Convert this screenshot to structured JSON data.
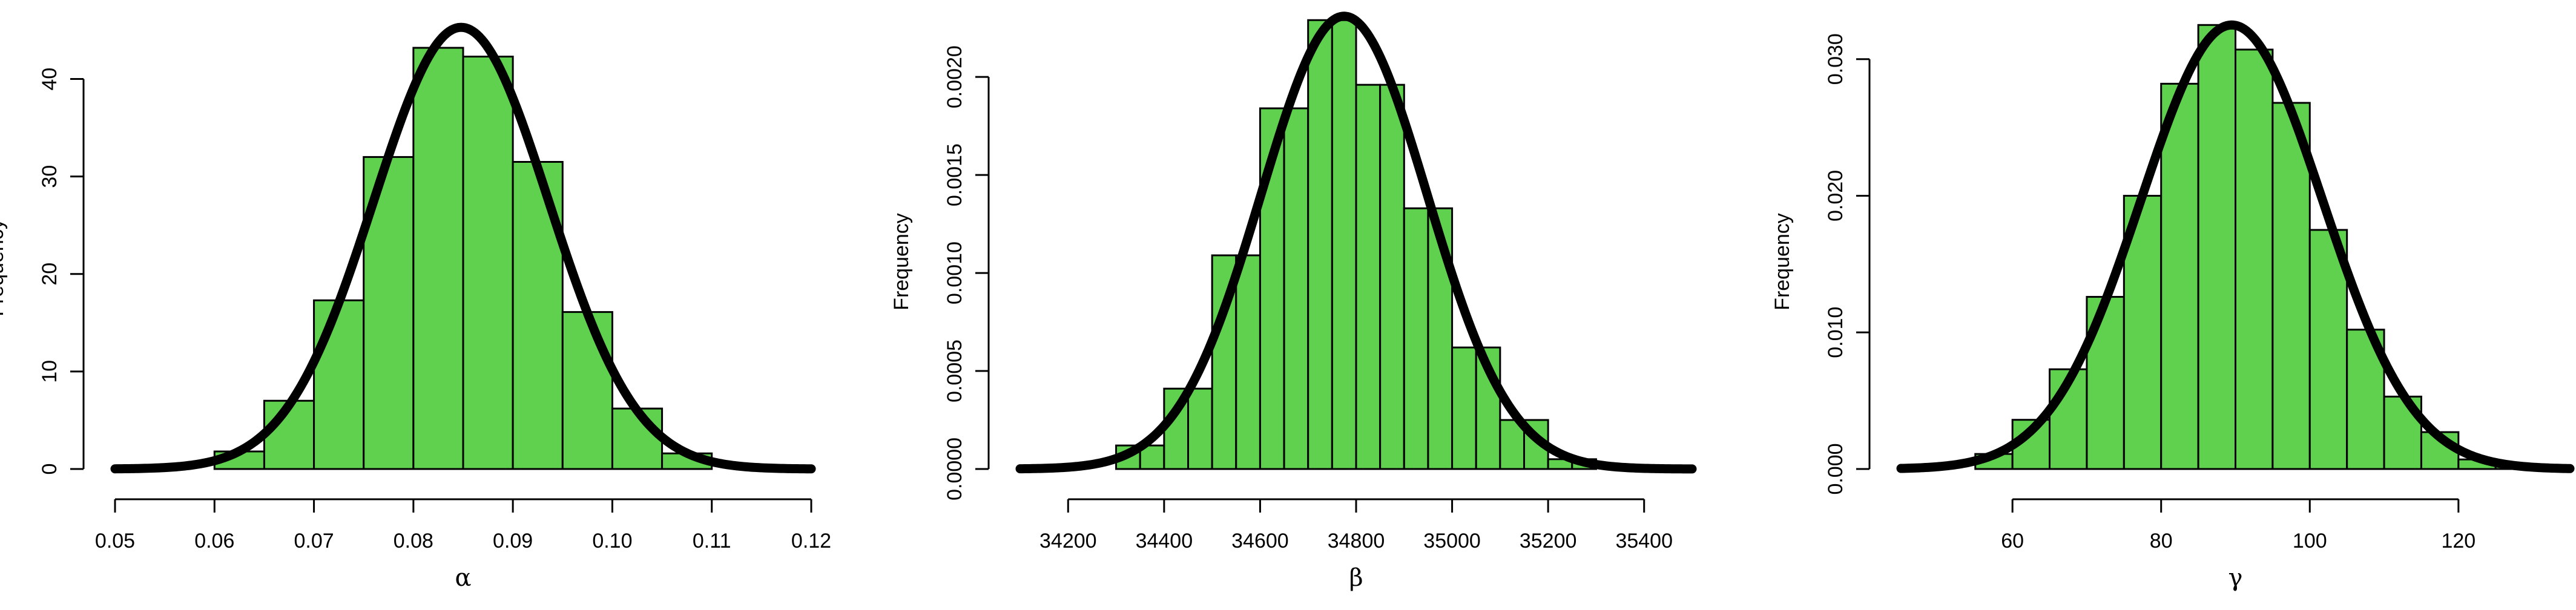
{
  "colors": {
    "bar_fill": "#5fd14f",
    "bar_stroke": "#000000",
    "curve": "#000000"
  },
  "chart_data": [
    {
      "type": "bar",
      "title": "",
      "xlabel": "α",
      "ylabel": "Frequency",
      "xlim": [
        0.05,
        0.12
      ],
      "ylim": [
        0,
        45
      ],
      "x_ticks": [
        0.05,
        0.06,
        0.07,
        0.08,
        0.09,
        0.1,
        0.11,
        0.12
      ],
      "x_tick_labels": [
        "0.05",
        "0.06",
        "0.07",
        "0.08",
        "0.09",
        "0.10",
        "0.11",
        "0.12"
      ],
      "y_ticks": [
        0,
        10,
        20,
        30,
        40
      ],
      "y_tick_labels": [
        "0",
        "10",
        "20",
        "30",
        "40"
      ],
      "bin_edges": [
        0.06,
        0.065,
        0.07,
        0.075,
        0.08,
        0.085,
        0.09,
        0.095,
        0.1,
        0.105,
        0.11
      ],
      "values": [
        1.8,
        7.0,
        17.3,
        32.0,
        43.2,
        42.3,
        31.5,
        16.1,
        6.2,
        1.6
      ],
      "curve": {
        "type": "normal",
        "mean": 0.0848,
        "sd": 0.0088,
        "peak": 45.3,
        "x_range": [
          0.05,
          0.12
        ]
      },
      "grid": false,
      "legend": "none"
    },
    {
      "type": "bar",
      "title": "",
      "xlabel": "β",
      "ylabel": "Frequency",
      "xlim": [
        34100,
        35500
      ],
      "ylim": [
        0,
        0.0023
      ],
      "x_ticks": [
        34200,
        34400,
        34600,
        34800,
        35000,
        35200,
        35400
      ],
      "x_tick_labels": [
        "34200",
        "34400",
        "34600",
        "34800",
        "35000",
        "35200",
        "35400"
      ],
      "y_ticks": [
        0,
        0.0005,
        0.001,
        0.0015,
        0.002
      ],
      "y_tick_labels": [
        "0.0000",
        "0.0005",
        "0.0010",
        "0.0015",
        "0.0020"
      ],
      "bin_edges": [
        34300,
        34350,
        34400,
        34450,
        34500,
        34550,
        34600,
        34650,
        34700,
        34750,
        34800,
        34850,
        34900,
        34950,
        35000,
        35050,
        35100,
        35150,
        35200,
        35250,
        35300
      ],
      "values": [
        0.00012,
        0.00012,
        0.00041,
        0.00041,
        0.00109,
        0.00109,
        0.00184,
        0.00184,
        0.00229,
        0.00229,
        0.00196,
        0.00196,
        0.00133,
        0.00133,
        0.00062,
        0.00062,
        0.00025,
        0.00025,
        5e-05,
        5e-05
      ],
      "curve": {
        "type": "normal",
        "mean": 34775,
        "sd": 173,
        "peak": 0.00231,
        "x_range": [
          34100,
          35500
        ]
      },
      "grid": false,
      "legend": "none"
    },
    {
      "type": "bar",
      "title": "",
      "xlabel": "γ",
      "ylabel": "Frequency",
      "xlim": [
        45,
        135
      ],
      "ylim": [
        0,
        0.033
      ],
      "x_ticks": [
        60,
        80,
        100,
        120
      ],
      "x_tick_labels": [
        "60",
        "80",
        "100",
        "120"
      ],
      "y_ticks": [
        0,
        0.01,
        0.02,
        0.03
      ],
      "y_tick_labels": [
        "0.000",
        "0.010",
        "0.020",
        "0.030"
      ],
      "bin_edges": [
        55,
        60,
        65,
        70,
        75,
        80,
        85,
        90,
        95,
        100,
        105,
        110,
        115,
        120,
        125,
        130
      ],
      "values": [
        0.0011,
        0.0036,
        0.0073,
        0.0126,
        0.02,
        0.0282,
        0.0325,
        0.0307,
        0.0268,
        0.0175,
        0.0102,
        0.0053,
        0.0027,
        0.0007,
        0.0002
      ],
      "curve": {
        "type": "normal",
        "mean": 89.5,
        "sd": 12.2,
        "peak": 0.0325,
        "x_range": [
          45,
          135
        ]
      },
      "grid": false,
      "legend": "none"
    }
  ]
}
